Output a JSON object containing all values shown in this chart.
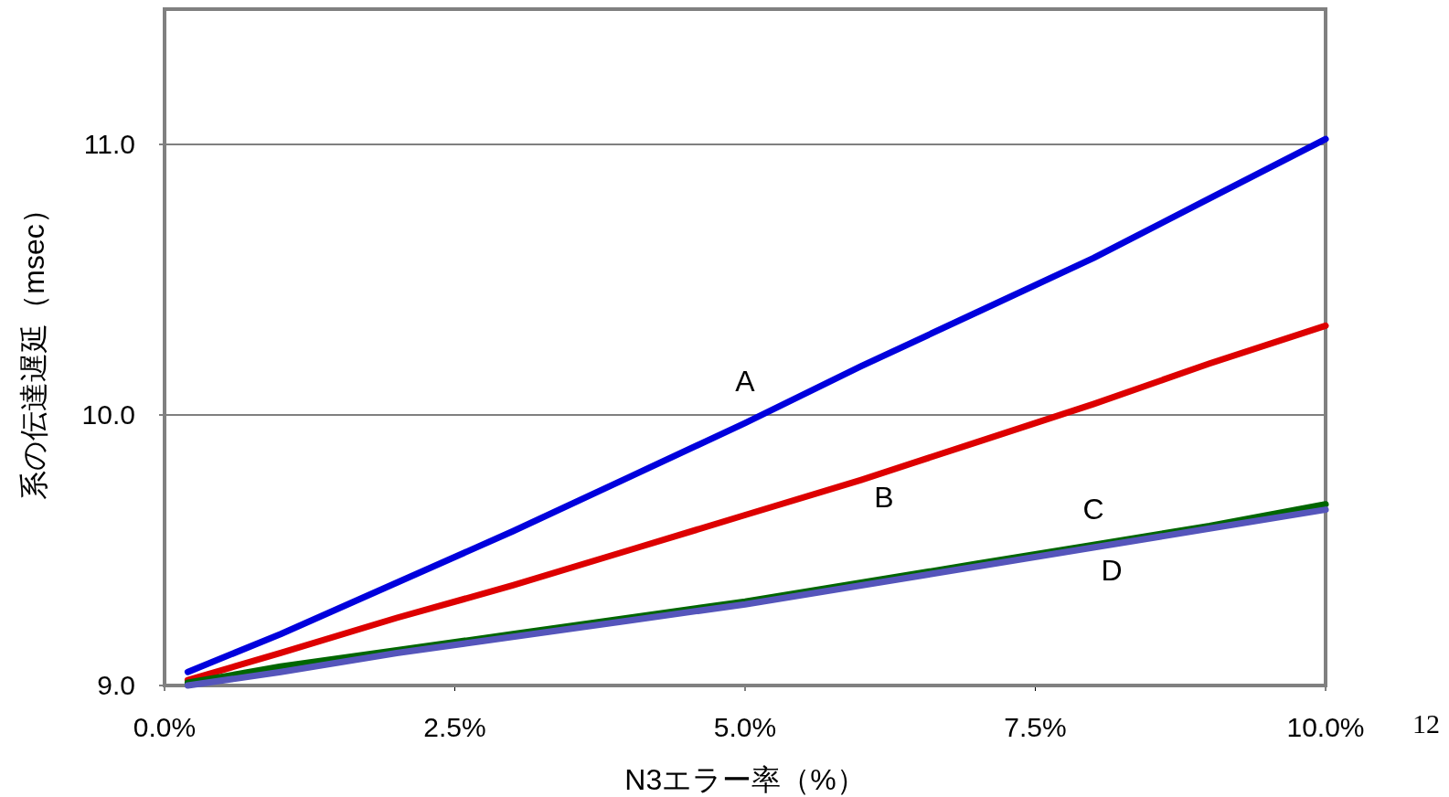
{
  "chart_data": {
    "type": "line",
    "xlabel": "N3エラー率（%）",
    "ylabel": "系の伝達遅延（msec）",
    "annotations": [
      "12"
    ],
    "x": [
      0.2,
      1,
      2,
      3,
      4,
      5,
      6,
      7,
      8,
      9,
      10
    ],
    "xlim": [
      0,
      10
    ],
    "xticks": [
      {
        "value": 0,
        "label": "0.0%"
      },
      {
        "value": 2.5,
        "label": "2.5%"
      },
      {
        "value": 5,
        "label": "5.0%"
      },
      {
        "value": 7.5,
        "label": "7.5%"
      },
      {
        "value": 10,
        "label": "10.0%"
      }
    ],
    "ylim": [
      9,
      11.5
    ],
    "yticks": [
      {
        "value": 9,
        "label": "9.0"
      },
      {
        "value": 10,
        "label": "10.0"
      },
      {
        "value": 11,
        "label": "11.0"
      }
    ],
    "grid": "y",
    "marker": "none",
    "line_style": "solid",
    "series": [
      {
        "name": "A",
        "color": "#0000dd",
        "values": [
          9.05,
          9.19,
          9.38,
          9.57,
          9.77,
          9.97,
          10.18,
          10.38,
          10.58,
          10.8,
          11.02
        ]
      },
      {
        "name": "B",
        "color": "#dd0000",
        "values": [
          9.02,
          9.12,
          9.25,
          9.37,
          9.5,
          9.63,
          9.76,
          9.9,
          10.04,
          10.19,
          10.33
        ]
      },
      {
        "name": "C",
        "color": "#006600",
        "values": [
          9.01,
          9.07,
          9.13,
          9.19,
          9.25,
          9.31,
          9.38,
          9.45,
          9.52,
          9.59,
          9.67
        ]
      },
      {
        "name": "D",
        "color": "#5555bb",
        "values": [
          9.0,
          9.05,
          9.12,
          9.18,
          9.24,
          9.3,
          9.37,
          9.44,
          9.51,
          9.58,
          9.65
        ]
      }
    ]
  }
}
